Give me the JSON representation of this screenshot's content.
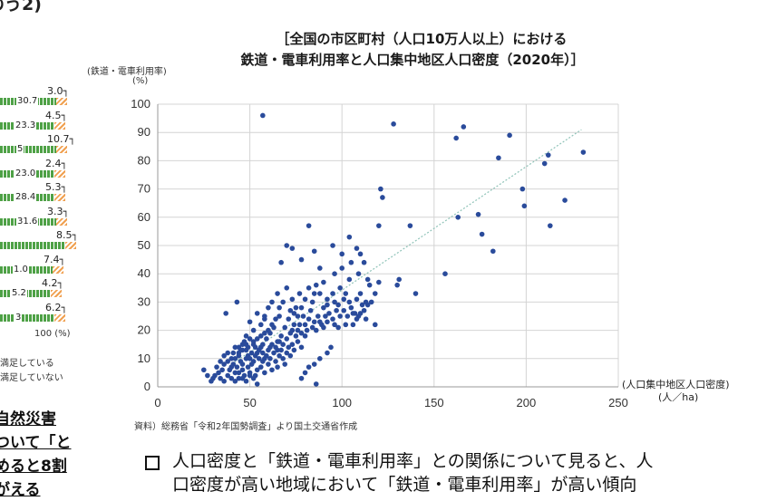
{
  "top_left_fragment": "のう2)",
  "left_panel": {
    "bars": [
      {
        "mid": "30.7",
        "right": "3.0"
      },
      {
        "mid": "23.3",
        "right": "4.5"
      },
      {
        "mid": "5",
        "right": "10.7"
      },
      {
        "mid": "23.0",
        "right": "2.4"
      },
      {
        "mid": "28.4",
        "right": "5.3"
      },
      {
        "mid": "31.6",
        "right": "3.3"
      },
      {
        "mid": "",
        "right": "8.5"
      },
      {
        "mid": "1.0",
        "right": "7.4"
      },
      {
        "mid": "5.2",
        "right": "4.2"
      },
      {
        "mid": "3",
        "right": "6.2"
      }
    ],
    "axis_label": "100 (%)",
    "legend": [
      "満足している",
      "満足していない"
    ],
    "text_lines": [
      "自然災害",
      "ついて「と",
      "めると8割",
      "がえる"
    ]
  },
  "chart_title_lines": [
    "［全国の市区町村（人口10万人以上）における",
    "鉄道・電車利用率と人口集中地区人口密度（2020年）］"
  ],
  "source_note": "資料）総務省「令和2年国勢調査」より国土交通省作成",
  "bottom_text_lines": [
    "人口密度と「鉄道・電車利用率」との関係について見ると、人",
    "口密度が高い地域において「鉄道・電車利用率」が高い傾向"
  ],
  "chart_data": {
    "type": "scatter",
    "ylabel": "(鉄道・電車利用率)",
    "yunit": "(%)",
    "xlabel": "(人口集中地区人口密度)",
    "xunit": "(人／ha)",
    "xlim": [
      0,
      250
    ],
    "ylim": [
      0,
      100
    ],
    "xticks": [
      0,
      50,
      100,
      150,
      200,
      250
    ],
    "yticks": [
      0,
      10,
      20,
      30,
      40,
      50,
      60,
      70,
      80,
      90,
      100
    ],
    "grid": true,
    "colors": {
      "point": "#2a4b9b",
      "trend": "#8fc3b8"
    },
    "trendline": {
      "x": [
        40,
        230
      ],
      "y": [
        8,
        91
      ]
    },
    "points": [
      [
        57,
        96
      ],
      [
        128,
        93
      ],
      [
        166,
        92
      ],
      [
        191,
        89
      ],
      [
        162,
        88
      ],
      [
        185,
        81
      ],
      [
        212,
        82
      ],
      [
        210,
        79
      ],
      [
        231,
        83
      ],
      [
        198,
        70
      ],
      [
        199,
        64
      ],
      [
        221,
        66
      ],
      [
        174,
        61
      ],
      [
        163,
        60
      ],
      [
        213,
        57
      ],
      [
        176,
        54
      ],
      [
        182,
        48
      ],
      [
        156,
        40
      ],
      [
        121,
        70
      ],
      [
        122,
        67
      ],
      [
        120,
        57
      ],
      [
        137,
        57
      ],
      [
        131,
        38
      ],
      [
        130,
        36
      ],
      [
        140,
        33
      ],
      [
        118,
        22
      ],
      [
        82,
        57
      ],
      [
        95,
        50
      ],
      [
        100,
        47
      ],
      [
        104,
        53
      ],
      [
        108,
        49
      ],
      [
        110,
        47
      ],
      [
        105,
        44
      ],
      [
        112,
        44
      ],
      [
        100,
        42
      ],
      [
        109,
        40
      ],
      [
        96,
        40
      ],
      [
        88,
        42
      ],
      [
        73,
        49
      ],
      [
        70,
        50
      ],
      [
        67,
        44
      ],
      [
        85,
        48
      ],
      [
        78,
        45
      ],
      [
        90,
        37
      ],
      [
        104,
        38
      ],
      [
        114,
        38
      ],
      [
        120,
        37
      ],
      [
        118,
        33
      ],
      [
        115,
        36
      ],
      [
        110,
        33
      ],
      [
        113,
        30
      ],
      [
        108,
        31
      ],
      [
        101,
        31
      ],
      [
        99,
        35
      ],
      [
        95,
        33
      ],
      [
        92,
        31
      ],
      [
        90,
        28
      ],
      [
        85,
        33
      ],
      [
        82,
        35
      ],
      [
        80,
        31
      ],
      [
        77,
        33
      ],
      [
        75,
        28
      ],
      [
        73,
        31
      ],
      [
        70,
        35
      ],
      [
        68,
        30
      ],
      [
        65,
        33
      ],
      [
        62,
        30
      ],
      [
        60,
        28
      ],
      [
        58,
        25
      ],
      [
        56,
        22
      ],
      [
        54,
        26
      ],
      [
        52,
        20
      ],
      [
        50,
        23
      ],
      [
        48,
        18
      ],
      [
        46,
        15
      ],
      [
        44,
        12
      ],
      [
        42,
        14
      ],
      [
        40,
        10
      ],
      [
        38,
        12
      ],
      [
        36,
        8
      ],
      [
        35,
        6
      ],
      [
        33,
        5
      ],
      [
        31,
        4
      ],
      [
        30,
        3
      ],
      [
        29,
        2
      ],
      [
        37,
        26
      ],
      [
        43,
        30
      ],
      [
        47,
        16
      ],
      [
        49,
        14
      ],
      [
        51,
        12
      ],
      [
        53,
        11
      ],
      [
        55,
        13
      ],
      [
        57,
        15
      ],
      [
        59,
        17
      ],
      [
        61,
        19
      ],
      [
        63,
        21
      ],
      [
        65,
        16
      ],
      [
        67,
        18
      ],
      [
        69,
        21
      ],
      [
        71,
        24
      ],
      [
        73,
        20
      ],
      [
        75,
        18
      ],
      [
        77,
        22
      ],
      [
        79,
        25
      ],
      [
        81,
        20
      ],
      [
        83,
        27
      ],
      [
        85,
        23
      ],
      [
        87,
        25
      ],
      [
        89,
        22
      ],
      [
        91,
        25
      ],
      [
        93,
        26
      ],
      [
        95,
        24
      ],
      [
        97,
        27
      ],
      [
        99,
        25
      ],
      [
        101,
        27
      ],
      [
        103,
        25
      ],
      [
        105,
        28
      ],
      [
        107,
        26
      ],
      [
        109,
        25
      ],
      [
        111,
        29
      ],
      [
        113,
        24
      ],
      [
        94,
        14
      ],
      [
        92,
        12
      ],
      [
        88,
        10
      ],
      [
        85,
        8
      ],
      [
        82,
        7
      ],
      [
        80,
        5
      ],
      [
        78,
        3
      ],
      [
        86,
        1
      ],
      [
        25,
        6
      ],
      [
        27,
        4
      ],
      [
        32,
        7
      ],
      [
        34,
        9
      ],
      [
        36,
        11
      ],
      [
        38,
        4
      ],
      [
        39,
        6
      ],
      [
        41,
        8
      ],
      [
        42,
        5
      ],
      [
        43,
        7
      ],
      [
        44,
        3
      ],
      [
        45,
        9
      ],
      [
        46,
        6
      ],
      [
        47,
        4
      ],
      [
        48,
        10
      ],
      [
        49,
        7
      ],
      [
        50,
        5
      ],
      [
        51,
        8
      ],
      [
        52,
        9
      ],
      [
        53,
        4
      ],
      [
        54,
        6
      ],
      [
        55,
        10
      ],
      [
        56,
        7
      ],
      [
        57,
        9
      ],
      [
        58,
        5
      ],
      [
        59,
        11
      ],
      [
        60,
        8
      ],
      [
        61,
        10
      ],
      [
        62,
        6
      ],
      [
        63,
        12
      ],
      [
        64,
        9
      ],
      [
        65,
        7
      ],
      [
        66,
        11
      ],
      [
        67,
        13
      ],
      [
        68,
        10
      ],
      [
        69,
        8
      ],
      [
        70,
        12
      ],
      [
        71,
        14
      ],
      [
        72,
        11
      ],
      [
        73,
        15
      ],
      [
        74,
        13
      ],
      [
        76,
        16
      ],
      [
        78,
        14
      ],
      [
        80,
        18
      ],
      [
        40,
        3
      ],
      [
        42,
        2
      ],
      [
        44,
        5
      ],
      [
        46,
        3
      ],
      [
        48,
        2
      ],
      [
        50,
        4
      ],
      [
        52,
        3
      ],
      [
        54,
        1
      ],
      [
        41,
        12
      ],
      [
        45,
        13
      ],
      [
        49,
        11
      ],
      [
        53,
        14
      ],
      [
        57,
        12
      ],
      [
        61,
        14
      ],
      [
        65,
        13
      ],
      [
        34,
        3
      ],
      [
        36,
        2
      ],
      [
        38,
        9
      ],
      [
        40,
        7
      ],
      [
        42,
        10
      ],
      [
        44,
        11
      ],
      [
        46,
        8
      ],
      [
        48,
        13
      ],
      [
        50,
        10
      ],
      [
        52,
        15
      ],
      [
        54,
        12
      ],
      [
        56,
        14
      ],
      [
        58,
        10
      ],
      [
        60,
        13
      ],
      [
        62,
        15
      ],
      [
        64,
        14
      ],
      [
        66,
        16
      ],
      [
        68,
        15
      ],
      [
        70,
        17
      ],
      [
        72,
        19
      ],
      [
        74,
        22
      ],
      [
        76,
        20
      ],
      [
        78,
        19
      ],
      [
        80,
        22
      ],
      [
        82,
        24
      ],
      [
        84,
        21
      ],
      [
        86,
        20
      ],
      [
        88,
        23
      ],
      [
        90,
        21
      ],
      [
        92,
        23
      ],
      [
        96,
        22
      ],
      [
        98,
        21
      ],
      [
        102,
        22
      ],
      [
        106,
        22
      ],
      [
        84,
        30
      ],
      [
        88,
        33
      ],
      [
        86,
        36
      ],
      [
        92,
        29
      ],
      [
        96,
        30
      ],
      [
        98,
        29
      ],
      [
        102,
        33
      ],
      [
        104,
        30
      ],
      [
        106,
        26
      ],
      [
        108,
        24
      ],
      [
        110,
        26
      ],
      [
        112,
        27
      ],
      [
        114,
        29
      ],
      [
        116,
        30
      ],
      [
        78,
        28
      ],
      [
        76,
        25
      ],
      [
        74,
        26
      ],
      [
        72,
        27
      ],
      [
        66,
        25
      ],
      [
        64,
        24
      ],
      [
        62,
        22
      ],
      [
        60,
        20
      ],
      [
        58,
        19
      ],
      [
        56,
        18
      ],
      [
        54,
        17
      ],
      [
        52,
        16
      ],
      [
        50,
        17
      ],
      [
        48,
        15
      ],
      [
        46,
        13
      ],
      [
        44,
        14
      ],
      [
        58,
        24
      ],
      [
        66,
        28
      ]
    ]
  }
}
